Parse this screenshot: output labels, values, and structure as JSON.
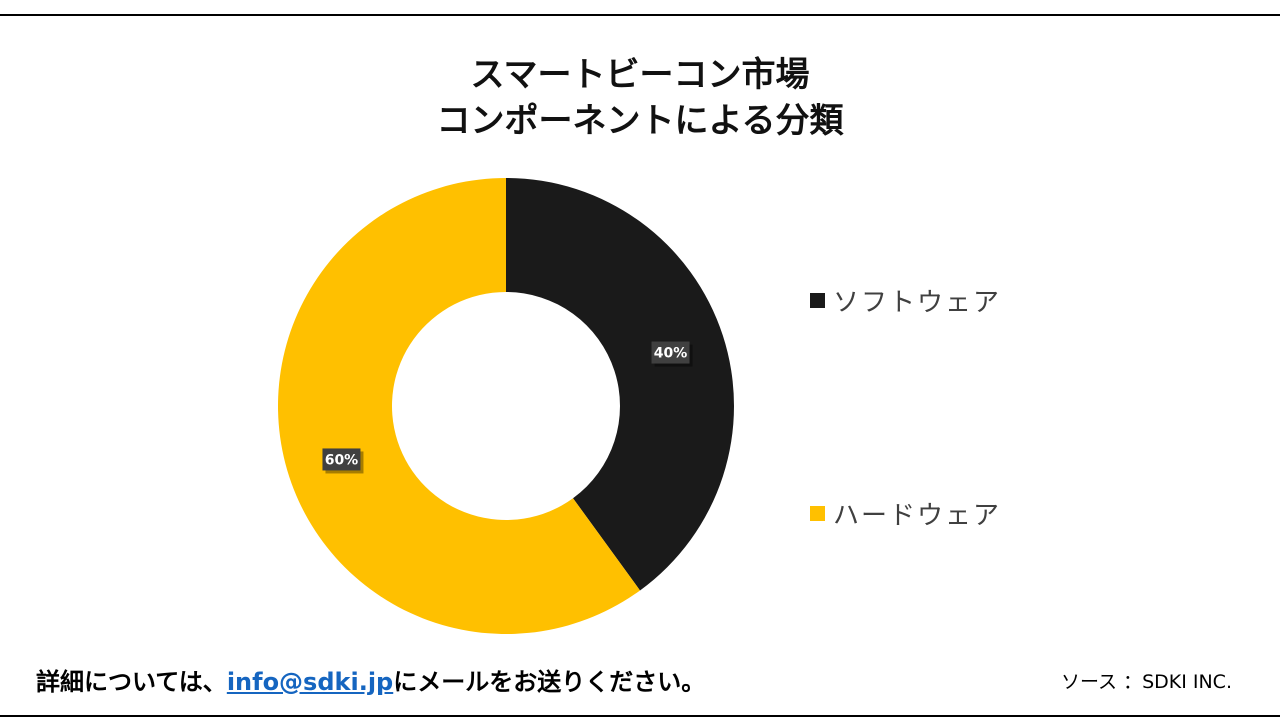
{
  "chart_data": {
    "type": "pie",
    "variant": "donut",
    "title_lines": [
      "スマートビーコン市場",
      "コンポーネントによる分類"
    ],
    "slices": [
      {
        "name": "ソフトウェア",
        "value": 40,
        "label": "40%",
        "color": "#1a1a1a"
      },
      {
        "name": "ハードウェア",
        "value": 60,
        "label": "60%",
        "color": "#ffc000"
      }
    ],
    "legend_position": "right"
  },
  "footer": {
    "contact_prefix": "詳細については、",
    "contact_email": "info@sdki.jp",
    "contact_suffix": "にメールをお送りください。",
    "source": "ソース ：SDKI INC."
  }
}
